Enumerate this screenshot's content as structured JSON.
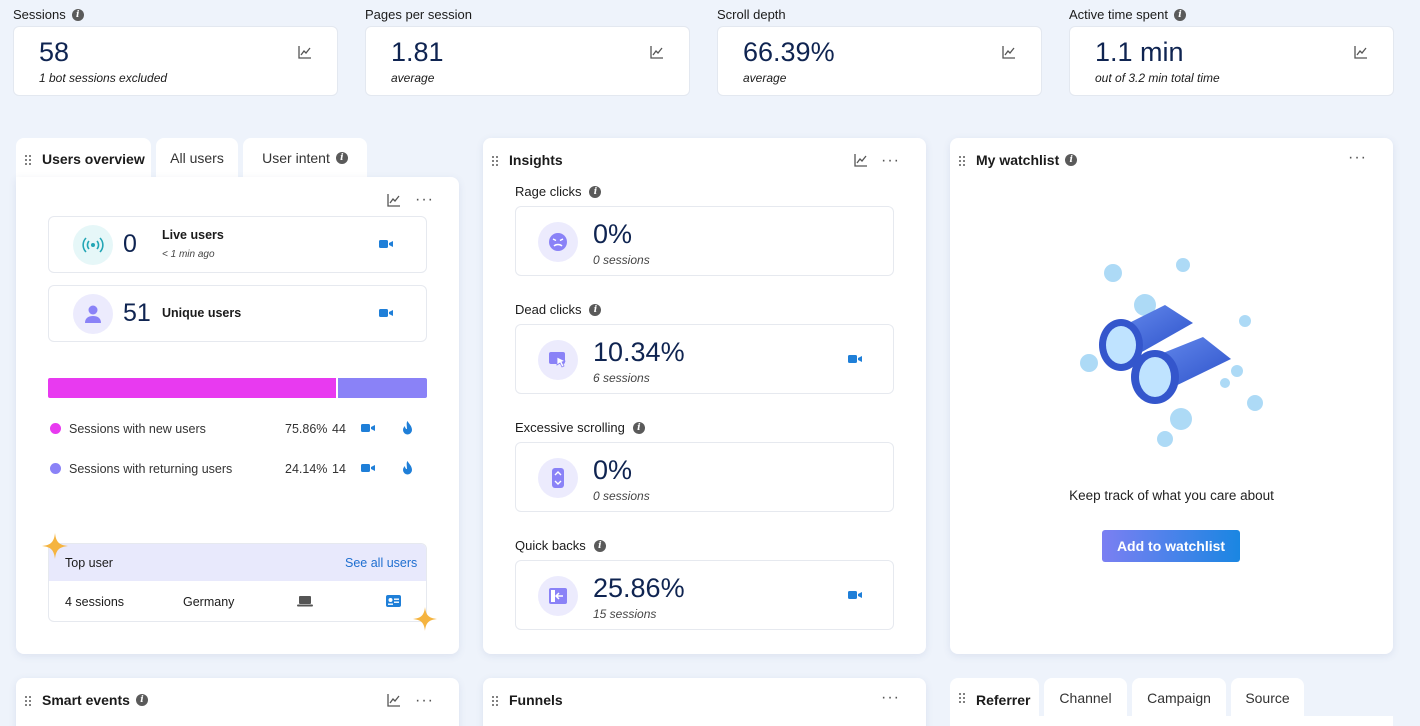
{
  "metrics": [
    {
      "label": "Sessions",
      "value": "58",
      "sub": "1 bot sessions excluded",
      "info": true
    },
    {
      "label": "Pages per session",
      "value": "1.81",
      "sub": "average",
      "info": false
    },
    {
      "label": "Scroll depth",
      "value": "66.39%",
      "sub": "average",
      "info": false
    },
    {
      "label": "Active time spent",
      "value": "1.1 min",
      "sub": "out of 3.2 min total time",
      "info": true
    }
  ],
  "users_panel": {
    "tabs": [
      "Users overview",
      "All users",
      "User intent"
    ],
    "live_users": {
      "value": "0",
      "label": "Live users",
      "sub": "< 1 min ago"
    },
    "unique_users": {
      "value": "51",
      "label": "Unique users"
    },
    "split_bar": {
      "new_fraction": 0.7586,
      "new_color": "#e83af0",
      "returning_color": "#8a82f7"
    },
    "legend": [
      {
        "label": "Sessions with new users",
        "pct": "75.86%",
        "count": "44",
        "color": "#e83af0"
      },
      {
        "label": "Sessions with returning users",
        "pct": "24.14%",
        "count": "14",
        "color": "#8a82f7"
      }
    ],
    "top_user": {
      "title": "Top user",
      "link": "See all users",
      "sessions": "4 sessions",
      "country": "Germany"
    }
  },
  "insights": {
    "title": "Insights",
    "items": [
      {
        "label": "Rage clicks",
        "value": "0%",
        "sub": "0 sessions",
        "icon": "angry-face-icon",
        "has_video": false
      },
      {
        "label": "Dead clicks",
        "value": "10.34%",
        "sub": "6 sessions",
        "icon": "dead-click-icon",
        "has_video": true
      },
      {
        "label": "Excessive scrolling",
        "value": "0%",
        "sub": "0 sessions",
        "icon": "scroll-icon",
        "has_video": false
      },
      {
        "label": "Quick backs",
        "value": "25.86%",
        "sub": "15 sessions",
        "icon": "back-icon",
        "has_video": true
      }
    ]
  },
  "watchlist": {
    "title": "My watchlist",
    "message": "Keep track of what you care about",
    "button": "Add to watchlist"
  },
  "bottom": {
    "smart_events": "Smart events",
    "funnels": "Funnels",
    "referrer_tabs": [
      "Referrer",
      "Channel",
      "Campaign",
      "Source"
    ]
  }
}
